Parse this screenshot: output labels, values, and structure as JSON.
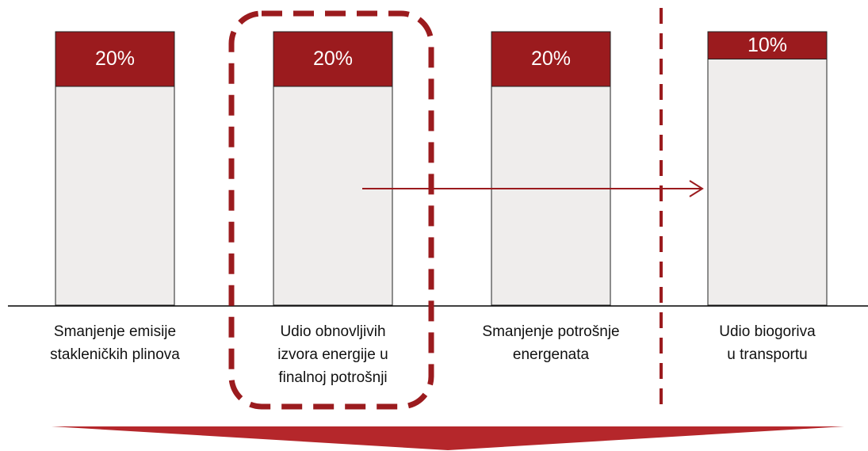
{
  "chart_data": {
    "type": "stacked_bar",
    "categories": [
      "Smanjenje emisije\nstakleničkih plinova",
      "Udio obnovljivih\nizvora energije u\nfinalnoj potrošnji",
      "Smanjenje potrošnje\nenergenata",
      "Udio biogoriva\nu transportu"
    ],
    "series": [
      {
        "color": "#efedec",
        "values": [
          80,
          80,
          80,
          90
        ]
      },
      {
        "color": "#9b1b1e",
        "values": [
          20,
          20,
          20,
          10
        ],
        "value_labels": [
          "20%",
          "20%",
          "20%",
          "10%"
        ]
      }
    ],
    "ylim": [
      0,
      100
    ]
  }
}
